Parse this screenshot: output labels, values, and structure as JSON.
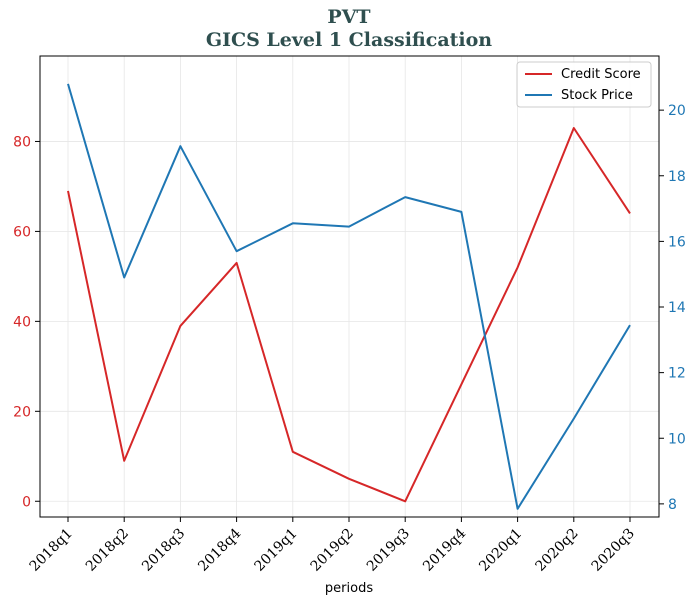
{
  "chart_data": {
    "type": "line",
    "title": "PVT",
    "subtitle": "GICS Level 1 Classification",
    "xlabel": "periods",
    "categories": [
      "2018q1",
      "2018q2",
      "2018q3",
      "2018q4",
      "2019q1",
      "2019q2",
      "2019q3",
      "2019q4",
      "2020q1",
      "2020q2",
      "2020q3"
    ],
    "series": [
      {
        "name": "Credit Score",
        "color": "#d62728",
        "axis": "left",
        "values": [
          69,
          9,
          39,
          53,
          11,
          5,
          0,
          26,
          52,
          83,
          64
        ]
      },
      {
        "name": "Stock Price",
        "color": "#1f77b4",
        "axis": "right",
        "values": [
          20.8,
          14.9,
          18.9,
          15.7,
          16.55,
          16.45,
          17.35,
          16.9,
          7.85,
          10.6,
          13.45
        ]
      }
    ],
    "ylim_left": [
      -3.5,
      99
    ],
    "yticks_left": [
      "0",
      "20",
      "40",
      "60",
      "80"
    ],
    "ylim_right": [
      7.6,
      21.65
    ],
    "yticks_right": [
      "8",
      "10",
      "12",
      "14",
      "16",
      "18",
      "20"
    ],
    "grid": true,
    "legend": "upper right"
  }
}
